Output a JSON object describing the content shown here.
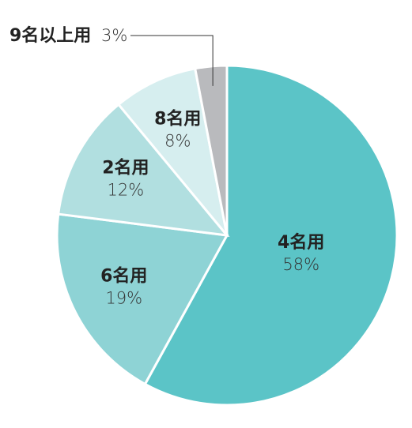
{
  "chart_data": {
    "type": "pie",
    "categories": [
      "4名用",
      "6名用",
      "2名用",
      "8名用",
      "9名以上用"
    ],
    "values": [
      58,
      19,
      12,
      8,
      3
    ],
    "value_labels": [
      "58%",
      "19%",
      "12%",
      "8%",
      "3%"
    ],
    "colors": [
      "#5bc4c7",
      "#8ed3d5",
      "#b1dfe0",
      "#d6eeef",
      "#b9babd"
    ]
  }
}
